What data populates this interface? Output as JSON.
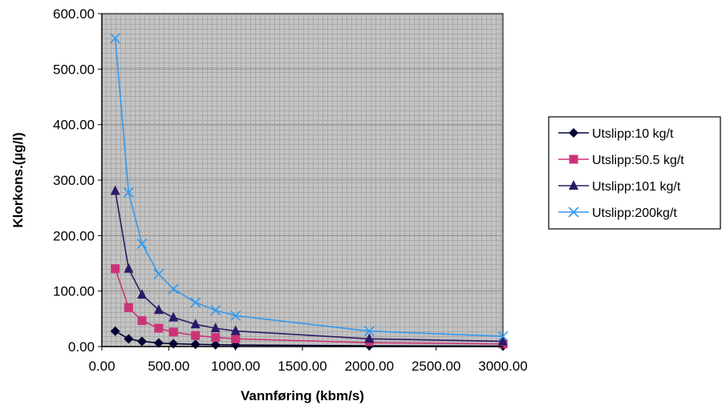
{
  "chart_data": {
    "type": "line",
    "title": "",
    "xlabel": "Vannføring (kbm/s)",
    "ylabel": "Klorkons.(µg/l)",
    "xlim": [
      0,
      3000
    ],
    "ylim": [
      0,
      600
    ],
    "x_ticks": [
      "0.00",
      "500.00",
      "1000.00",
      "1500.00",
      "2000.00",
      "2500.00",
      "3000.00"
    ],
    "y_ticks": [
      "0.00",
      "100.00",
      "200.00",
      "300.00",
      "400.00",
      "500.00",
      "600.00"
    ],
    "grid": true,
    "legend_position": "right",
    "x": [
      100,
      200,
      300,
      425,
      535,
      700,
      850,
      1000,
      2000,
      3000
    ],
    "series": [
      {
        "name": "Utslipp:10 kg/t",
        "color": "#000033",
        "marker": "diamond",
        "values": [
          27.8,
          13.9,
          9.3,
          6.5,
          5.2,
          4.0,
          3.3,
          2.8,
          1.4,
          0.9
        ]
      },
      {
        "name": "Utslipp:50.5 kg/t",
        "color": "#cc3377",
        "marker": "square",
        "values": [
          140.3,
          70.1,
          46.8,
          33.0,
          26.2,
          20.0,
          16.5,
          14.0,
          7.0,
          4.7
        ]
      },
      {
        "name": "Utslipp:101 kg/t",
        "color": "#2a1a66",
        "marker": "triangle",
        "values": [
          280.6,
          140.3,
          93.5,
          66.0,
          52.4,
          40.1,
          33.0,
          28.1,
          14.0,
          9.4
        ]
      },
      {
        "name": "Utslipp:200kg/t",
        "color": "#3399ee",
        "marker": "x",
        "values": [
          555.6,
          277.8,
          185.2,
          130.7,
          103.8,
          79.4,
          65.4,
          55.6,
          27.8,
          18.5
        ]
      }
    ]
  }
}
